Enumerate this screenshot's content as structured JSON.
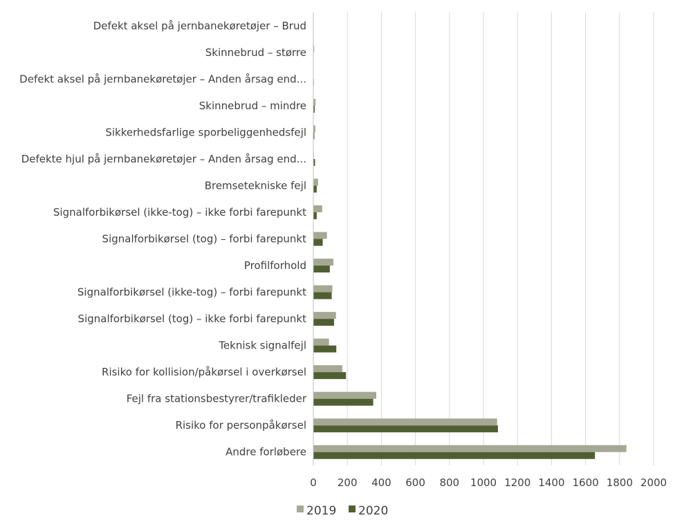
{
  "chart_data": {
    "type": "bar",
    "orientation": "horizontal",
    "categories": [
      "Defekt aksel på jernbanekøretøjer – Brud",
      "Skinnebrud – større",
      "Defekt aksel på jernbanekøretøjer – Anden årsag end...",
      "Skinnebrud – mindre",
      "Sikkerhedsfarlige sporbeliggenhedsfejl",
      "Defekte hjul på jernbanekøretøjer – Anden årsag end...",
      "Bremsetekniske fejl",
      "Signalforbikørsel (ikke-tog) – ikke forbi farepunkt",
      "Signalforbikørsel (tog) – forbi farepunkt",
      "Profilforhold",
      "Signalforbikørsel (ikke-tog) – forbi farepunkt",
      "Signalforbikørsel (tog) – ikke forbi farepunkt",
      "Teknisk signalfejl",
      "Risiko for kollision/påkørsel i overkørsel",
      "Fejl fra stationsbestyrer/trafikleder",
      "Risiko for personpåkørsel",
      "Andre forløbere"
    ],
    "series": [
      {
        "name": "2019",
        "color": "#a5a994",
        "values": [
          0,
          5,
          2,
          13,
          12,
          3,
          28,
          52,
          80,
          118,
          112,
          133,
          92,
          170,
          370,
          1080,
          1840
        ]
      },
      {
        "name": "2020",
        "color": "#4f5f32",
        "values": [
          0,
          2,
          3,
          8,
          6,
          10,
          20,
          20,
          55,
          97,
          108,
          122,
          135,
          192,
          352,
          1085,
          1655
        ]
      }
    ],
    "xlim": [
      0,
      2000
    ],
    "xticks": [
      0,
      200,
      400,
      600,
      800,
      1000,
      1200,
      1400,
      1600,
      1800,
      2000
    ],
    "grid": "vertical",
    "legend_position": "bottom"
  }
}
